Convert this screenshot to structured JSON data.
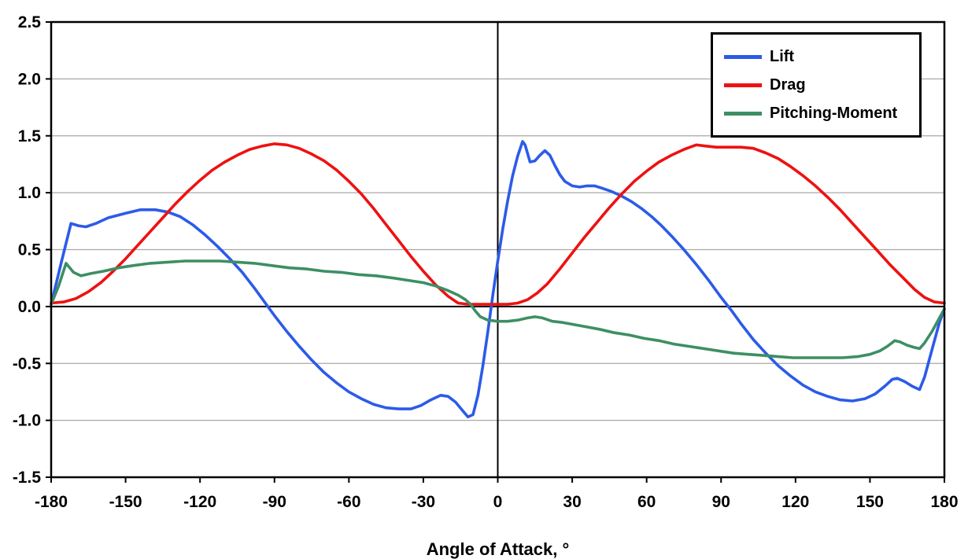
{
  "chart_data": {
    "type": "line",
    "title": "",
    "xlabel": "Angle of Attack, °",
    "ylabel": "",
    "xlim": [
      -180,
      180
    ],
    "ylim": [
      -1.5,
      2.5
    ],
    "x_ticks": [
      -180,
      -150,
      -120,
      -90,
      -60,
      -30,
      0,
      30,
      60,
      90,
      120,
      150,
      180
    ],
    "x_tick_labels": [
      "-180",
      "-150",
      "-120",
      "-90",
      "-60",
      "-30",
      "0",
      "30",
      "60",
      "90",
      "120",
      "150",
      "180"
    ],
    "y_ticks": [
      -1.5,
      -1.0,
      -0.5,
      0.0,
      0.5,
      1.0,
      1.5,
      2.0,
      2.5
    ],
    "y_tick_labels": [
      "-1.5",
      "-1.0",
      "-0.5",
      "0.0",
      "0.5",
      "1.0",
      "1.5",
      "2.0",
      "2.5"
    ],
    "grid": "horizontal-only",
    "zero_axes": true,
    "legend_position": "top-right",
    "colors": {
      "lift": "#2C5BE8",
      "drag": "#EE1111",
      "pitching_moment": "#3E8E64",
      "gridline": "#A8A8A8",
      "axis": "#000000"
    },
    "series": [
      {
        "name": "Lift",
        "color": "#2C5BE8",
        "points": [
          [
            -180,
            0.02
          ],
          [
            -176,
            0.38
          ],
          [
            -172,
            0.73
          ],
          [
            -169,
            0.71
          ],
          [
            -166,
            0.7
          ],
          [
            -162,
            0.73
          ],
          [
            -157,
            0.78
          ],
          [
            -150,
            0.82
          ],
          [
            -144,
            0.85
          ],
          [
            -138,
            0.85
          ],
          [
            -133,
            0.83
          ],
          [
            -128,
            0.79
          ],
          [
            -123,
            0.72
          ],
          [
            -118,
            0.63
          ],
          [
            -113,
            0.53
          ],
          [
            -108,
            0.42
          ],
          [
            -103,
            0.3
          ],
          [
            -98,
            0.16
          ],
          [
            -94,
            0.04
          ],
          [
            -90,
            -0.08
          ],
          [
            -85,
            -0.22
          ],
          [
            -80,
            -0.35
          ],
          [
            -75,
            -0.47
          ],
          [
            -70,
            -0.58
          ],
          [
            -65,
            -0.67
          ],
          [
            -60,
            -0.75
          ],
          [
            -55,
            -0.81
          ],
          [
            -50,
            -0.86
          ],
          [
            -45,
            -0.89
          ],
          [
            -40,
            -0.9
          ],
          [
            -35,
            -0.9
          ],
          [
            -31,
            -0.87
          ],
          [
            -27,
            -0.82
          ],
          [
            -23,
            -0.78
          ],
          [
            -20,
            -0.79
          ],
          [
            -17,
            -0.84
          ],
          [
            -14,
            -0.92
          ],
          [
            -12,
            -0.97
          ],
          [
            -10,
            -0.95
          ],
          [
            -8,
            -0.78
          ],
          [
            -6,
            -0.52
          ],
          [
            -4,
            -0.22
          ],
          [
            -2,
            0.1
          ],
          [
            0,
            0.4
          ],
          [
            2,
            0.68
          ],
          [
            4,
            0.93
          ],
          [
            6,
            1.15
          ],
          [
            8,
            1.32
          ],
          [
            10,
            1.45
          ],
          [
            11,
            1.42
          ],
          [
            13,
            1.27
          ],
          [
            15,
            1.28
          ],
          [
            17,
            1.33
          ],
          [
            19,
            1.37
          ],
          [
            21,
            1.33
          ],
          [
            23,
            1.24
          ],
          [
            25,
            1.16
          ],
          [
            27,
            1.1
          ],
          [
            30,
            1.06
          ],
          [
            33,
            1.05
          ],
          [
            36,
            1.06
          ],
          [
            39,
            1.06
          ],
          [
            42,
            1.04
          ],
          [
            46,
            1.01
          ],
          [
            50,
            0.97
          ],
          [
            54,
            0.92
          ],
          [
            58,
            0.86
          ],
          [
            62,
            0.79
          ],
          [
            66,
            0.71
          ],
          [
            70,
            0.62
          ],
          [
            75,
            0.5
          ],
          [
            80,
            0.37
          ],
          [
            85,
            0.23
          ],
          [
            90,
            0.08
          ],
          [
            94,
            -0.03
          ],
          [
            98,
            -0.15
          ],
          [
            103,
            -0.29
          ],
          [
            108,
            -0.41
          ],
          [
            113,
            -0.52
          ],
          [
            118,
            -0.61
          ],
          [
            123,
            -0.69
          ],
          [
            128,
            -0.75
          ],
          [
            133,
            -0.79
          ],
          [
            138,
            -0.82
          ],
          [
            143,
            -0.83
          ],
          [
            148,
            -0.81
          ],
          [
            152,
            -0.77
          ],
          [
            156,
            -0.7
          ],
          [
            159,
            -0.64
          ],
          [
            161,
            -0.63
          ],
          [
            164,
            -0.66
          ],
          [
            167,
            -0.7
          ],
          [
            170,
            -0.73
          ],
          [
            172,
            -0.62
          ],
          [
            175,
            -0.38
          ],
          [
            178,
            -0.14
          ],
          [
            180,
            -0.02
          ]
        ]
      },
      {
        "name": "Drag",
        "color": "#EE1111",
        "points": [
          [
            -180,
            0.03
          ],
          [
            -175,
            0.04
          ],
          [
            -170,
            0.07
          ],
          [
            -165,
            0.13
          ],
          [
            -160,
            0.21
          ],
          [
            -155,
            0.31
          ],
          [
            -150,
            0.42
          ],
          [
            -145,
            0.54
          ],
          [
            -140,
            0.66
          ],
          [
            -135,
            0.78
          ],
          [
            -130,
            0.9
          ],
          [
            -125,
            1.01
          ],
          [
            -120,
            1.11
          ],
          [
            -115,
            1.2
          ],
          [
            -110,
            1.27
          ],
          [
            -105,
            1.33
          ],
          [
            -100,
            1.38
          ],
          [
            -95,
            1.41
          ],
          [
            -90,
            1.43
          ],
          [
            -85,
            1.42
          ],
          [
            -80,
            1.39
          ],
          [
            -75,
            1.34
          ],
          [
            -70,
            1.28
          ],
          [
            -65,
            1.2
          ],
          [
            -60,
            1.1
          ],
          [
            -55,
            0.99
          ],
          [
            -50,
            0.86
          ],
          [
            -45,
            0.72
          ],
          [
            -40,
            0.58
          ],
          [
            -35,
            0.44
          ],
          [
            -30,
            0.31
          ],
          [
            -25,
            0.19
          ],
          [
            -20,
            0.09
          ],
          [
            -16,
            0.03
          ],
          [
            -12,
            0.02
          ],
          [
            -8,
            0.02
          ],
          [
            -4,
            0.02
          ],
          [
            0,
            0.02
          ],
          [
            4,
            0.02
          ],
          [
            8,
            0.03
          ],
          [
            12,
            0.06
          ],
          [
            16,
            0.12
          ],
          [
            20,
            0.2
          ],
          [
            25,
            0.33
          ],
          [
            30,
            0.47
          ],
          [
            35,
            0.61
          ],
          [
            40,
            0.74
          ],
          [
            45,
            0.87
          ],
          [
            50,
            0.99
          ],
          [
            55,
            1.1
          ],
          [
            60,
            1.19
          ],
          [
            65,
            1.27
          ],
          [
            70,
            1.33
          ],
          [
            75,
            1.38
          ],
          [
            80,
            1.42
          ],
          [
            84,
            1.41
          ],
          [
            88,
            1.4
          ],
          [
            93,
            1.4
          ],
          [
            98,
            1.4
          ],
          [
            103,
            1.39
          ],
          [
            108,
            1.35
          ],
          [
            113,
            1.3
          ],
          [
            118,
            1.23
          ],
          [
            123,
            1.15
          ],
          [
            128,
            1.06
          ],
          [
            133,
            0.96
          ],
          [
            138,
            0.85
          ],
          [
            143,
            0.73
          ],
          [
            148,
            0.61
          ],
          [
            153,
            0.49
          ],
          [
            158,
            0.37
          ],
          [
            163,
            0.26
          ],
          [
            168,
            0.15
          ],
          [
            172,
            0.08
          ],
          [
            176,
            0.04
          ],
          [
            180,
            0.03
          ]
        ]
      },
      {
        "name": "Pitching-Moment",
        "color": "#3E8E64",
        "points": [
          [
            -180,
            0.02
          ],
          [
            -177,
            0.18
          ],
          [
            -174,
            0.38
          ],
          [
            -171,
            0.3
          ],
          [
            -168,
            0.27
          ],
          [
            -164,
            0.29
          ],
          [
            -159,
            0.31
          ],
          [
            -153,
            0.34
          ],
          [
            -147,
            0.36
          ],
          [
            -140,
            0.38
          ],
          [
            -133,
            0.39
          ],
          [
            -126,
            0.4
          ],
          [
            -119,
            0.4
          ],
          [
            -112,
            0.4
          ],
          [
            -105,
            0.39
          ],
          [
            -98,
            0.38
          ],
          [
            -91,
            0.36
          ],
          [
            -84,
            0.34
          ],
          [
            -77,
            0.33
          ],
          [
            -70,
            0.31
          ],
          [
            -63,
            0.3
          ],
          [
            -56,
            0.28
          ],
          [
            -49,
            0.27
          ],
          [
            -42,
            0.25
          ],
          [
            -36,
            0.23
          ],
          [
            -30,
            0.21
          ],
          [
            -25,
            0.18
          ],
          [
            -20,
            0.14
          ],
          [
            -16,
            0.1
          ],
          [
            -13,
            0.06
          ],
          [
            -11,
            0.02
          ],
          [
            -9,
            -0.04
          ],
          [
            -7,
            -0.09
          ],
          [
            -4,
            -0.12
          ],
          [
            0,
            -0.13
          ],
          [
            4,
            -0.13
          ],
          [
            8,
            -0.12
          ],
          [
            12,
            -0.1
          ],
          [
            15,
            -0.09
          ],
          [
            18,
            -0.1
          ],
          [
            22,
            -0.13
          ],
          [
            26,
            -0.14
          ],
          [
            31,
            -0.16
          ],
          [
            36,
            -0.18
          ],
          [
            41,
            -0.2
          ],
          [
            47,
            -0.23
          ],
          [
            53,
            -0.25
          ],
          [
            59,
            -0.28
          ],
          [
            65,
            -0.3
          ],
          [
            71,
            -0.33
          ],
          [
            77,
            -0.35
          ],
          [
            83,
            -0.37
          ],
          [
            89,
            -0.39
          ],
          [
            95,
            -0.41
          ],
          [
            101,
            -0.42
          ],
          [
            107,
            -0.43
          ],
          [
            113,
            -0.44
          ],
          [
            119,
            -0.45
          ],
          [
            126,
            -0.45
          ],
          [
            133,
            -0.45
          ],
          [
            139,
            -0.45
          ],
          [
            145,
            -0.44
          ],
          [
            150,
            -0.42
          ],
          [
            154,
            -0.39
          ],
          [
            157,
            -0.35
          ],
          [
            160,
            -0.3
          ],
          [
            162,
            -0.31
          ],
          [
            165,
            -0.34
          ],
          [
            168,
            -0.36
          ],
          [
            170,
            -0.37
          ],
          [
            172,
            -0.32
          ],
          [
            175,
            -0.22
          ],
          [
            178,
            -0.1
          ],
          [
            180,
            -0.02
          ]
        ]
      }
    ]
  }
}
